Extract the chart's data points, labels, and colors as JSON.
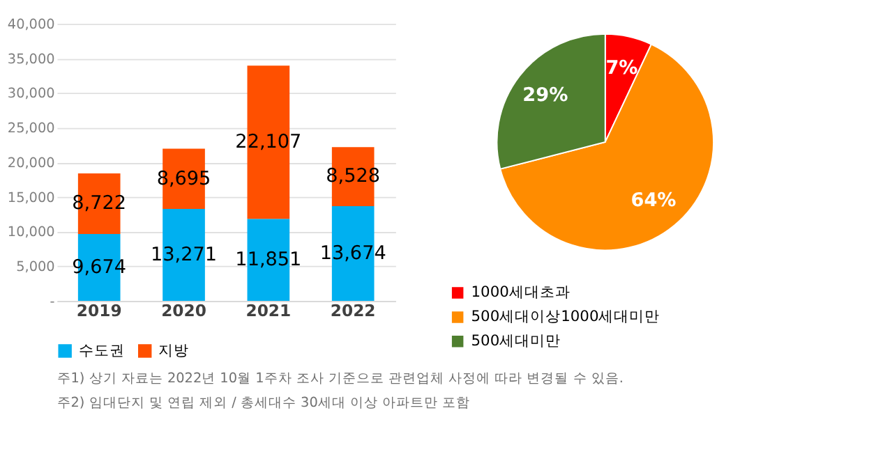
{
  "chart_data": [
    {
      "type": "bar",
      "stacked": true,
      "categories": [
        "2019",
        "2020",
        "2021",
        "2022"
      ],
      "series": [
        {
          "name": "수도권",
          "color": "#00b0f0",
          "values": [
            9674,
            13271,
            11851,
            13674
          ],
          "value_labels": [
            "9,674",
            "13,271",
            "11,851",
            "13,674"
          ]
        },
        {
          "name": "지방",
          "color": "#ff5000",
          "values": [
            8722,
            8695,
            22107,
            8528
          ],
          "value_labels": [
            "8,722",
            "8,695",
            "22,107",
            "8,528"
          ]
        }
      ],
      "ylim": [
        0,
        40000
      ],
      "yticks": [
        {
          "value": 0,
          "label": "-"
        },
        {
          "value": 5000,
          "label": "5,000"
        },
        {
          "value": 10000,
          "label": "10,000"
        },
        {
          "value": 15000,
          "label": "15,000"
        },
        {
          "value": 20000,
          "label": "20,000"
        },
        {
          "value": 25000,
          "label": "25,000"
        },
        {
          "value": 30000,
          "label": "30,000"
        },
        {
          "value": 35000,
          "label": "35,000"
        },
        {
          "value": 40000,
          "label": "40,000"
        }
      ],
      "grid": "y",
      "legend": "bottom",
      "annotations": [
        "주1) 상기 자료는 2022년 10월 1주차 조사 기준으로 관련업체 사정에 따라 변경될 수 있음.",
        "주2) 임대단지 및 연립 제외 / 총세대수 30세대 이상 아파트만 포함"
      ]
    },
    {
      "type": "pie",
      "categories": [
        "1000세대초과",
        "500세대이상1000세대미만",
        "500세대미만"
      ],
      "values": [
        7,
        64,
        29
      ],
      "colors": [
        "#ff0000",
        "#ff8c00",
        "#4f7f2f"
      ],
      "legend": "bottom",
      "value_labels": [
        "7%",
        "64%",
        "29%"
      ]
    }
  ]
}
